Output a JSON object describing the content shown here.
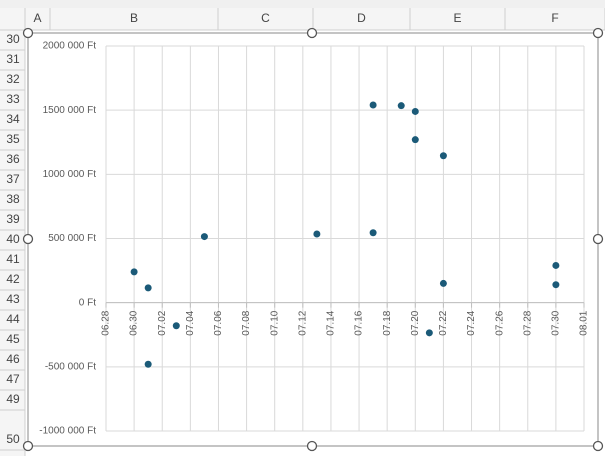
{
  "spreadsheet": {
    "columns": [
      "A",
      "B",
      "C",
      "D",
      "E",
      "F"
    ],
    "rows": [
      "30",
      "31",
      "32",
      "33",
      "34",
      "35",
      "36",
      "37",
      "38",
      "39",
      "40",
      "41",
      "42",
      "43",
      "44",
      "45",
      "46",
      "47",
      "49",
      "50"
    ]
  },
  "chart_data": {
    "type": "scatter",
    "color": "#1b5a78",
    "grid": true,
    "x": [
      "06.30",
      "07.01",
      "07.01",
      "07.03",
      "07.05",
      "07.13",
      "07.17",
      "07.17",
      "07.19",
      "07.20",
      "07.20",
      "07.21",
      "07.22",
      "07.22",
      "07.30",
      "07.30"
    ],
    "values": [
      240000,
      115000,
      -480000,
      -180000,
      515000,
      535000,
      1540000,
      545000,
      1535000,
      1490000,
      1270000,
      -235000,
      1145000,
      150000,
      290000,
      140000
    ],
    "xlim": [
      "06.28",
      "08.01"
    ],
    "xticks": [
      "06.28",
      "06.30",
      "07.02",
      "07.04",
      "07.06",
      "07.08",
      "07.10",
      "07.12",
      "07.14",
      "07.16",
      "07.18",
      "07.20",
      "07.22",
      "07.24",
      "07.26",
      "07.28",
      "07.30",
      "08.01"
    ],
    "ylim": [
      -1000000,
      2000000
    ],
    "yticks": [
      {
        "value": -1000000,
        "label": "-1000 000 Ft"
      },
      {
        "value": -500000,
        "label": "-500 000 Ft"
      },
      {
        "value": 0,
        "label": "0 Ft"
      },
      {
        "value": 500000,
        "label": "500 000 Ft"
      },
      {
        "value": 1000000,
        "label": "1000 000 Ft"
      },
      {
        "value": 1500000,
        "label": "1500 000 Ft"
      },
      {
        "value": 2000000,
        "label": "2000 000 Ft"
      }
    ]
  }
}
